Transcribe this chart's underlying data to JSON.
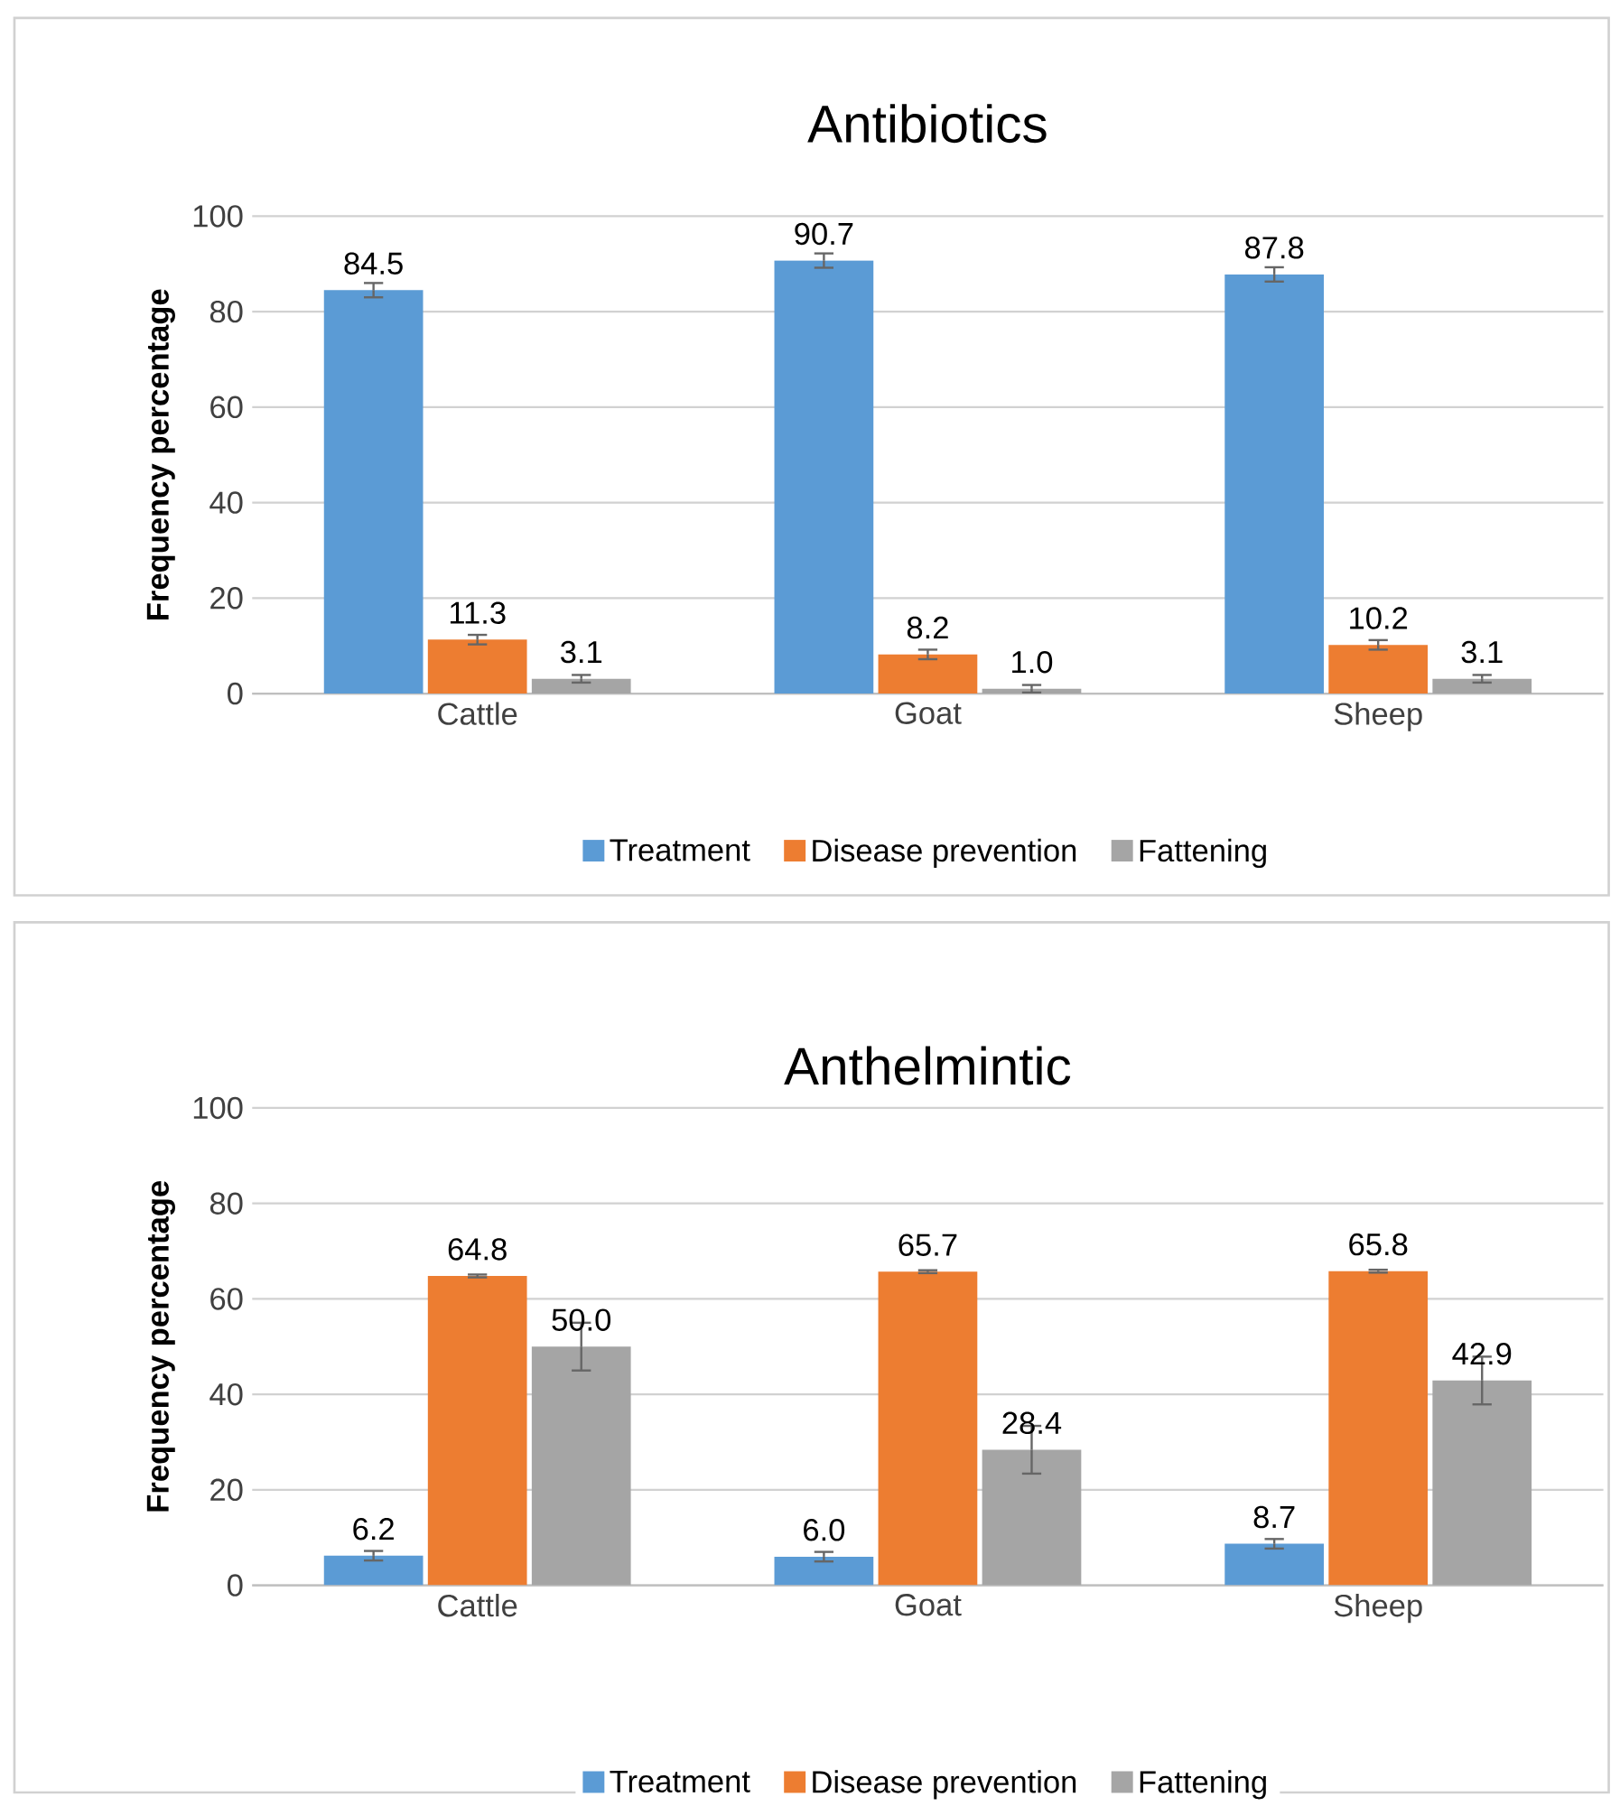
{
  "chart_data": [
    {
      "type": "bar",
      "title": "Antibiotics",
      "ylabel": "Frequency percentage",
      "categories": [
        "Cattle",
        "Goat",
        "Sheep"
      ],
      "series": [
        {
          "name": "Treatment",
          "color": "#5b9bd5",
          "values": [
            84.5,
            90.7,
            87.8
          ],
          "errors": [
            1.5,
            1.5,
            1.5
          ],
          "value_labels": [
            "84.5",
            "90.7",
            "87.8"
          ]
        },
        {
          "name": "Disease prevention",
          "color": "#ed7d31",
          "values": [
            11.3,
            8.2,
            10.2
          ],
          "errors": [
            1,
            1,
            1
          ],
          "value_labels": [
            "11.3",
            "8.2",
            "10.2"
          ]
        },
        {
          "name": "Fattening",
          "color": "#a5a5a5",
          "values": [
            3.1,
            1.0,
            3.1
          ],
          "errors": [
            0.8,
            0.8,
            0.8
          ],
          "value_labels": [
            "3.1",
            "1.0",
            "3.1"
          ]
        }
      ],
      "ylim": [
        0,
        100
      ],
      "yticks": [
        0,
        20,
        40,
        60,
        80,
        100
      ],
      "grid": "y",
      "legend": "bottom"
    },
    {
      "type": "bar",
      "title": "Anthelmintic",
      "ylabel": "Frequency percentage",
      "categories": [
        "Cattle",
        "Goat",
        "Sheep"
      ],
      "series": [
        {
          "name": "Treatment",
          "color": "#5b9bd5",
          "values": [
            6.2,
            6.0,
            8.7
          ],
          "errors": [
            1,
            1,
            1
          ],
          "value_labels": [
            "6.2",
            "6.0",
            "8.7"
          ]
        },
        {
          "name": "Disease prevention",
          "color": "#ed7d31",
          "values": [
            64.8,
            65.7,
            65.8
          ],
          "errors": [
            0.3,
            0.3,
            0.3
          ],
          "value_labels": [
            "64.8",
            "65.7",
            "65.8"
          ]
        },
        {
          "name": "Fattening",
          "color": "#a5a5a5",
          "values": [
            50.0,
            28.4,
            42.9
          ],
          "errors": [
            5,
            5,
            5
          ],
          "value_labels": [
            "50.0",
            "28.4",
            "42.9"
          ]
        }
      ],
      "ylim": [
        0,
        100
      ],
      "yticks": [
        0,
        20,
        40,
        60,
        80,
        100
      ],
      "grid": "y",
      "legend": "bottom"
    }
  ]
}
